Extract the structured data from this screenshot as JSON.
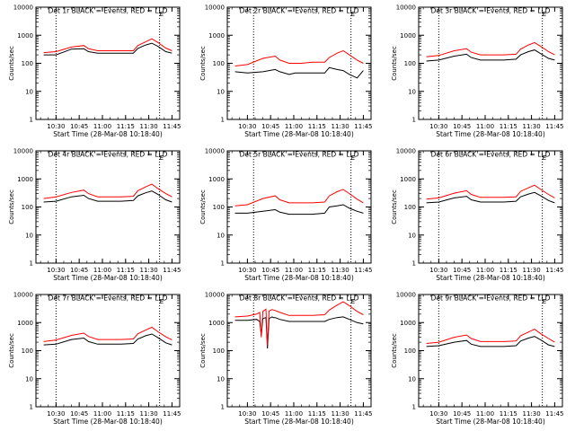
{
  "colors": {
    "events": "#000000",
    "lld": "#ff0000",
    "frame": "#000000",
    "background": "#ffffff"
  },
  "shared": {
    "xlabel": "Start Time (28-Mar-08 10:18:40)",
    "ylabel": "Counts/sec",
    "x_tick_labels": [
      "10:30",
      "10:45",
      "11:00",
      "11:15",
      "11:30",
      "11:45"
    ],
    "y_tick_labels": [
      "1",
      "10",
      "100",
      "1000",
      "10000"
    ],
    "corner_mark": "E"
  },
  "chart_data": [
    {
      "type": "line",
      "title": "Det 1r BLACK = Events, RED = LLD",
      "xlabel": "Start Time (28-Mar-08 10:18:40)",
      "ylabel": "Counts/sec",
      "x_ticks": [
        "10:30",
        "10:45",
        "11:00",
        "11:15",
        "11:30",
        "11:45"
      ],
      "x_minutes": [
        -8,
        0,
        10,
        18,
        21,
        27,
        31,
        35,
        42,
        50,
        53,
        58,
        62,
        66,
        71,
        75
      ],
      "ylim": [
        1,
        10000
      ],
      "yscale": "log",
      "vertical_lines": [
        "10:30",
        "11:37"
      ],
      "series": [
        {
          "name": "Events",
          "values": [
            200,
            200,
            320,
            330,
            260,
            230,
            230,
            230,
            230,
            230,
            340,
            450,
            520,
            400,
            260,
            230
          ]
        },
        {
          "name": "LLD",
          "values": [
            240,
            260,
            380,
            430,
            330,
            280,
            280,
            280,
            280,
            280,
            430,
            580,
            750,
            550,
            350,
            280
          ]
        }
      ]
    },
    {
      "type": "line",
      "title": "Det 2r BLACK = Events, RED = LLD",
      "xlabel": "Start Time (28-Mar-08 10:18:40)",
      "ylabel": "Counts/sec",
      "x_ticks": [
        "10:30",
        "10:45",
        "11:00",
        "11:15",
        "11:30",
        "11:45"
      ],
      "x_minutes": [
        -8,
        0,
        10,
        18,
        21,
        27,
        31,
        35,
        42,
        50,
        53,
        58,
        62,
        66,
        71,
        75
      ],
      "ylim": [
        1,
        10000
      ],
      "yscale": "log",
      "vertical_lines": [
        "10:34",
        "11:37"
      ],
      "series": [
        {
          "name": "Events",
          "values": [
            50,
            45,
            50,
            60,
            50,
            40,
            45,
            45,
            45,
            45,
            70,
            60,
            55,
            40,
            30,
            55
          ]
        },
        {
          "name": "LLD",
          "values": [
            80,
            90,
            150,
            180,
            130,
            100,
            100,
            100,
            110,
            110,
            160,
            230,
            280,
            200,
            130,
            100
          ]
        }
      ]
    },
    {
      "type": "line",
      "title": "Det 3r BLACK = Events, RED = LLD",
      "xlabel": "Start Time (28-Mar-08 10:18:40)",
      "ylabel": "Counts/sec",
      "x_ticks": [
        "10:30",
        "10:45",
        "11:00",
        "11:15",
        "11:30",
        "11:45"
      ],
      "x_minutes": [
        -8,
        0,
        10,
        18,
        21,
        27,
        31,
        35,
        42,
        50,
        53,
        58,
        62,
        66,
        71,
        75
      ],
      "ylim": [
        1,
        10000
      ],
      "yscale": "log",
      "vertical_lines": [
        "10:30",
        "11:37"
      ],
      "series": [
        {
          "name": "Events",
          "values": [
            120,
            130,
            180,
            210,
            160,
            130,
            130,
            130,
            130,
            140,
            200,
            260,
            300,
            220,
            150,
            130
          ]
        },
        {
          "name": "LLD",
          "values": [
            170,
            190,
            280,
            330,
            250,
            200,
            200,
            200,
            200,
            210,
            320,
            450,
            550,
            400,
            260,
            200
          ]
        }
      ]
    },
    {
      "type": "line",
      "title": "Det 4r BLACK = Events, RED = LLD",
      "xlabel": "Start Time (28-Mar-08 10:18:40)",
      "ylabel": "Counts/sec",
      "x_ticks": [
        "10:30",
        "10:45",
        "11:00",
        "11:15",
        "11:30",
        "11:45"
      ],
      "x_minutes": [
        -8,
        0,
        10,
        18,
        21,
        27,
        31,
        35,
        42,
        50,
        53,
        58,
        62,
        66,
        71,
        75
      ],
      "ylim": [
        1,
        10000
      ],
      "yscale": "log",
      "vertical_lines": [
        "10:30",
        "11:37"
      ],
      "series": [
        {
          "name": "Events",
          "values": [
            150,
            160,
            230,
            260,
            200,
            160,
            160,
            160,
            160,
            170,
            250,
            320,
            370,
            280,
            180,
            150
          ]
        },
        {
          "name": "LLD",
          "values": [
            200,
            230,
            330,
            400,
            300,
            230,
            230,
            230,
            230,
            240,
            380,
            520,
            650,
            450,
            300,
            230
          ]
        }
      ]
    },
    {
      "type": "line",
      "title": "Det 5r BLACK = Events, RED = LLD",
      "xlabel": "Start Time (28-Mar-08 10:18:40)",
      "ylabel": "Counts/sec",
      "x_ticks": [
        "10:30",
        "10:45",
        "11:00",
        "11:15",
        "11:30",
        "11:45"
      ],
      "x_minutes": [
        -8,
        0,
        10,
        18,
        21,
        27,
        31,
        35,
        42,
        50,
        53,
        58,
        62,
        66,
        71,
        75
      ],
      "ylim": [
        1,
        10000
      ],
      "yscale": "log",
      "vertical_lines": [
        "10:34",
        "11:37"
      ],
      "series": [
        {
          "name": "Events",
          "values": [
            60,
            60,
            70,
            80,
            65,
            55,
            55,
            55,
            55,
            60,
            100,
            110,
            120,
            90,
            70,
            60
          ]
        },
        {
          "name": "LLD",
          "values": [
            110,
            120,
            200,
            250,
            180,
            140,
            140,
            140,
            140,
            150,
            250,
            350,
            420,
            300,
            190,
            140
          ]
        }
      ]
    },
    {
      "type": "line",
      "title": "Det 6r BLACK = Events, RED = LLD",
      "xlabel": "Start Time (28-Mar-08 10:18:40)",
      "ylabel": "Counts/sec",
      "x_ticks": [
        "10:30",
        "10:45",
        "11:00",
        "11:15",
        "11:30",
        "11:45"
      ],
      "x_minutes": [
        -8,
        0,
        10,
        18,
        21,
        27,
        31,
        35,
        42,
        50,
        53,
        58,
        62,
        66,
        71,
        75
      ],
      "ylim": [
        1,
        10000
      ],
      "yscale": "log",
      "vertical_lines": [
        "10:30",
        "11:37"
      ],
      "series": [
        {
          "name": "Events",
          "values": [
            140,
            150,
            210,
            240,
            180,
            150,
            150,
            150,
            150,
            160,
            230,
            290,
            330,
            250,
            170,
            140
          ]
        },
        {
          "name": "LLD",
          "values": [
            190,
            210,
            310,
            380,
            280,
            220,
            220,
            220,
            220,
            230,
            360,
            480,
            600,
            420,
            280,
            210
          ]
        }
      ]
    },
    {
      "type": "line",
      "title": "Det 7r BLACK = Events, RED = LLD",
      "xlabel": "Start Time (28-Mar-08 10:18:40)",
      "ylabel": "Counts/sec",
      "x_ticks": [
        "10:30",
        "10:45",
        "11:00",
        "11:15",
        "11:30",
        "11:45"
      ],
      "x_minutes": [
        -8,
        0,
        10,
        18,
        21,
        27,
        31,
        35,
        42,
        50,
        53,
        58,
        62,
        66,
        71,
        75
      ],
      "ylim": [
        1,
        10000
      ],
      "yscale": "log",
      "vertical_lines": [
        "10:30",
        "11:37"
      ],
      "series": [
        {
          "name": "Events",
          "values": [
            160,
            170,
            250,
            280,
            210,
            170,
            170,
            170,
            170,
            180,
            260,
            340,
            390,
            290,
            190,
            160
          ]
        },
        {
          "name": "LLD",
          "values": [
            210,
            240,
            350,
            420,
            320,
            250,
            250,
            250,
            250,
            260,
            400,
            540,
            680,
            470,
            310,
            240
          ]
        }
      ]
    },
    {
      "type": "line",
      "title": "Det 8r BLACK = Events, RED = LLD",
      "xlabel": "Start Time (28-Mar-08 10:18:40)",
      "ylabel": "Counts/sec",
      "x_ticks": [
        "10:30",
        "10:45",
        "11:00",
        "11:15",
        "11:30",
        "11:45"
      ],
      "x_minutes": [
        -8,
        0,
        6,
        8,
        9,
        10,
        12,
        13,
        14,
        16,
        17,
        18,
        21,
        27,
        31,
        35,
        42,
        50,
        53,
        58,
        62,
        66,
        71,
        75
      ],
      "ylim": [
        1,
        10000
      ],
      "yscale": "log",
      "vertical_lines": [
        "10:34",
        "11:37"
      ],
      "series": [
        {
          "name": "Events",
          "values": [
            1200,
            1200,
            1300,
            1100,
            350,
            1400,
            1500,
            120,
            1400,
            1600,
            1500,
            1500,
            1300,
            1100,
            1100,
            1100,
            1100,
            1100,
            1300,
            1500,
            1600,
            1300,
            1000,
            900
          ]
        },
        {
          "name": "LLD",
          "values": [
            1600,
            1700,
            2000,
            2300,
            300,
            2500,
            3000,
            150,
            2600,
            2900,
            2800,
            2700,
            2300,
            1800,
            1800,
            1800,
            1800,
            1900,
            2800,
            4200,
            5500,
            4000,
            2500,
            1900
          ]
        }
      ]
    },
    {
      "type": "line",
      "title": "Det 9r BLACK = Events, RED = LLD",
      "xlabel": "Start Time (28-Mar-08 10:18:40)",
      "ylabel": "Counts/sec",
      "x_ticks": [
        "10:30",
        "10:45",
        "11:00",
        "11:15",
        "11:30",
        "11:45"
      ],
      "x_minutes": [
        -8,
        0,
        10,
        18,
        21,
        27,
        31,
        35,
        42,
        50,
        53,
        58,
        62,
        66,
        71,
        75
      ],
      "ylim": [
        1,
        10000
      ],
      "yscale": "log",
      "vertical_lines": [
        "10:30",
        "11:37"
      ],
      "series": [
        {
          "name": "Events",
          "values": [
            140,
            150,
            200,
            230,
            170,
            140,
            140,
            140,
            140,
            150,
            220,
            280,
            320,
            240,
            160,
            140
          ]
        },
        {
          "name": "LLD",
          "values": [
            180,
            200,
            300,
            360,
            270,
            210,
            210,
            210,
            210,
            220,
            340,
            460,
            580,
            400,
            270,
            200
          ]
        }
      ]
    }
  ]
}
